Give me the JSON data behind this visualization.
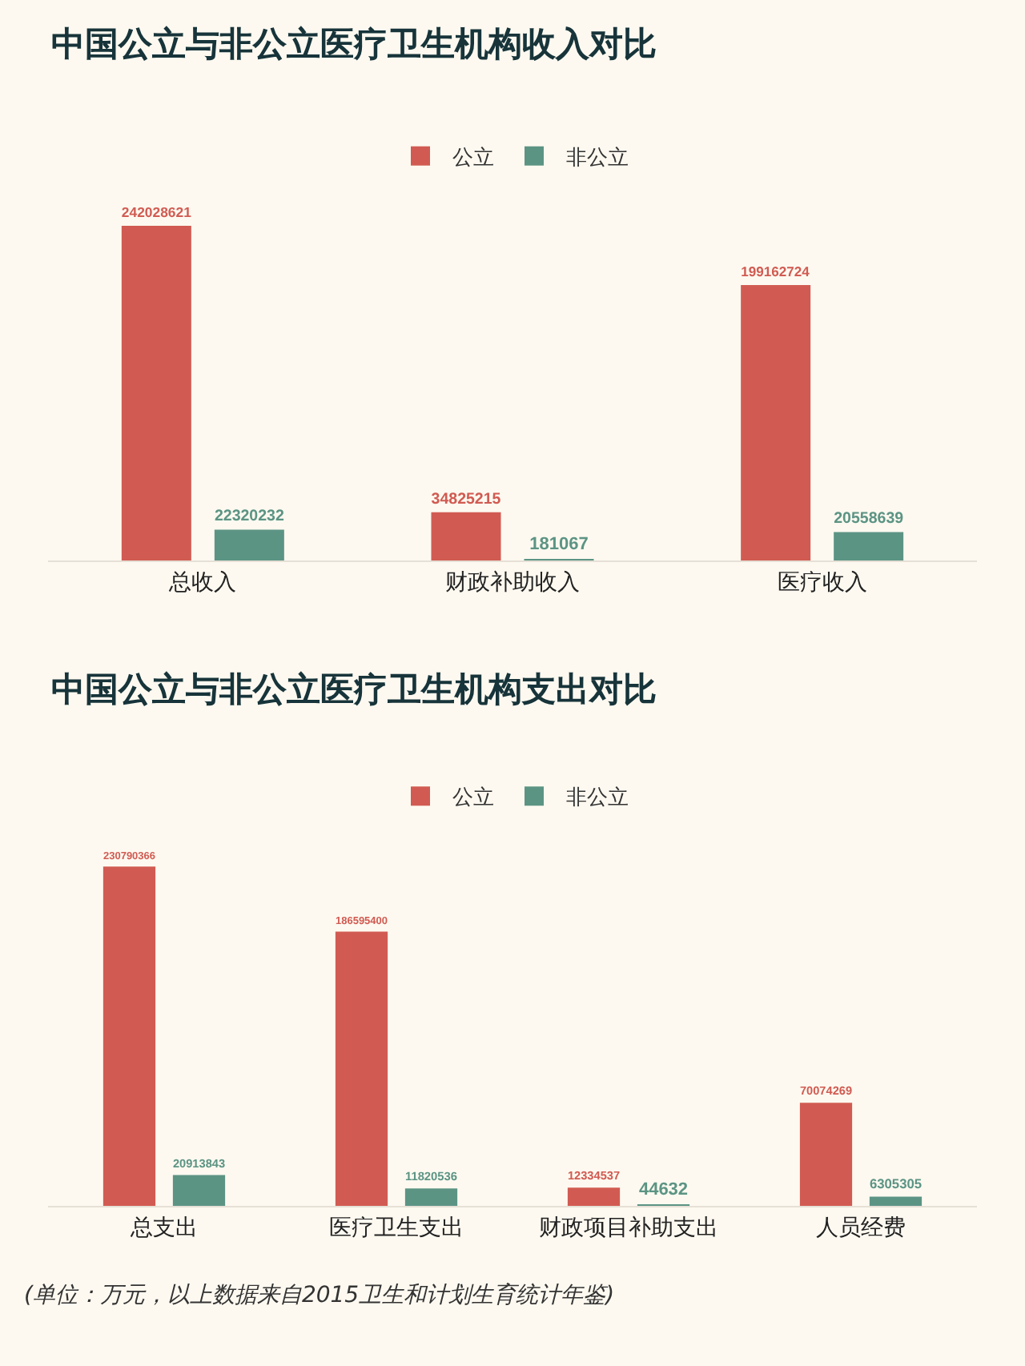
{
  "chart_data": [
    {
      "type": "bar",
      "title": "中国公立与非公立医疗卫生机构收入对比",
      "categories": [
        "总收入",
        "财政补助收入",
        "医疗收入"
      ],
      "series": [
        {
          "name": "公立",
          "color": "#d15b52",
          "values": [
            242028621,
            34825215,
            199162724
          ]
        },
        {
          "name": "非公立",
          "color": "#5c9484",
          "values": [
            22320232,
            181067,
            20558639
          ]
        }
      ],
      "data_labels": true,
      "legend": "top",
      "grid": false
    },
    {
      "type": "bar",
      "title": "中国公立与非公立医疗卫生机构支出对比",
      "categories": [
        "总支出",
        "医疗卫生支出",
        "财政项目补助支出",
        "人员经费"
      ],
      "series": [
        {
          "name": "公立",
          "color": "#d15b52",
          "values": [
            230790366,
            186595400,
            12334537,
            70074269
          ]
        },
        {
          "name": "非公立",
          "color": "#5c9484",
          "values": [
            20913843,
            11820536,
            44632,
            6305305
          ]
        }
      ],
      "data_labels": true,
      "legend": "top",
      "grid": false,
      "annotations": [
        "(单位：万元，以上数据来自2015卫生和计划生育统计年鉴)"
      ]
    }
  ]
}
